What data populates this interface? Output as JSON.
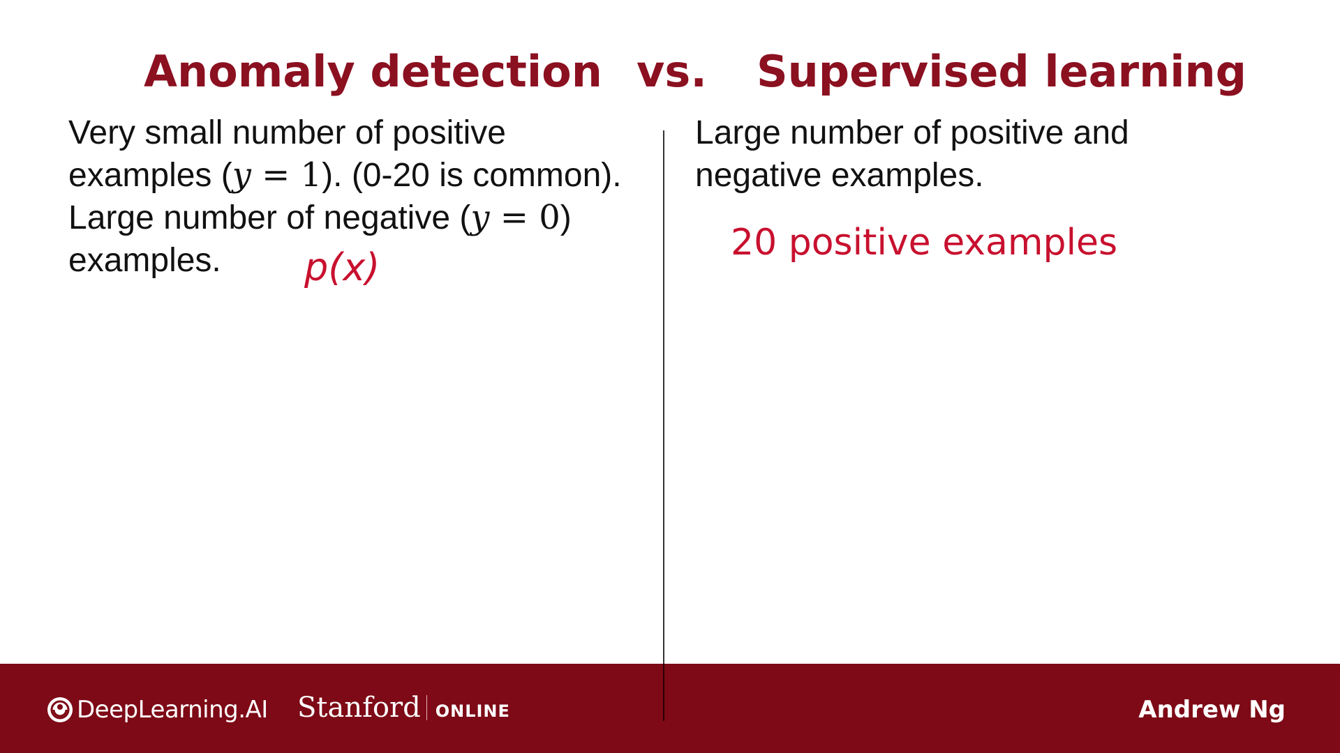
{
  "title": {
    "left": "Anomaly detection",
    "vs": "vs.",
    "right": "Supervised learning"
  },
  "left_column": {
    "line1": "Very small number of positive",
    "line2_a": "examples (",
    "line2_var": "y",
    "line2_eq": " = 1",
    "line2_b": "). (0-20 is common).",
    "line3_a": "Large number of negative (",
    "line3_var": "y",
    "line3_eq": " = 0",
    "line3_b": ")",
    "line4": "examples.",
    "handwritten_note": "p(x)"
  },
  "right_column": {
    "line1": "Large number of positive and",
    "line2": "negative examples.",
    "red_note": "20 positive examples"
  },
  "footer": {
    "brand": "DeepLearning.AI",
    "university": "Stanford",
    "university_suffix": "ONLINE",
    "author": "Andrew Ng"
  },
  "colors": {
    "title": "#8b1020",
    "note": "#c8102e",
    "footer_bg": "#7d0a16"
  },
  "icons": {
    "brand_logo": "deeplearning-ai-logo-icon"
  }
}
